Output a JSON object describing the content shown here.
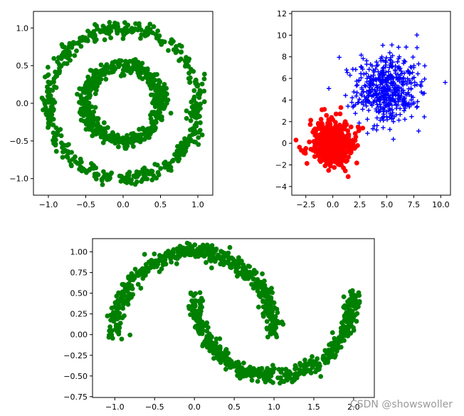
{
  "watermark": "CSDN @showswoller",
  "chart_data": [
    {
      "id": "circles",
      "type": "scatter",
      "title": "",
      "xlabel": "",
      "ylabel": "",
      "xlim": [
        -1.2,
        1.2
      ],
      "ylim": [
        -1.22,
        1.22
      ],
      "xticks": [
        -1.0,
        -0.5,
        0.0,
        0.5,
        1.0
      ],
      "xtick_labels": [
        "−1.0",
        "−0.5",
        "0.0",
        "0.5",
        "1.0"
      ],
      "yticks": [
        -1.0,
        -0.5,
        0.0,
        0.5,
        1.0
      ],
      "ytick_labels": [
        "−1.0",
        "−0.5",
        "0.0",
        "0.5",
        "1.0"
      ],
      "grid": false,
      "series": [
        {
          "color": "#008000",
          "marker": "circle",
          "description_points": {
            "generator": "circles",
            "outer_radius": 1.0,
            "inner_radius": 0.5,
            "noise": 0.05,
            "n": 1000,
            "seed": 11
          }
        }
      ]
    },
    {
      "id": "blobs",
      "type": "scatter",
      "title": "",
      "xlabel": "",
      "ylabel": "",
      "xlim": [
        -3.8,
        10.9
      ],
      "ylim": [
        -4.8,
        12.2
      ],
      "xticks": [
        -2.5,
        0.0,
        2.5,
        5.0,
        7.5,
        10.0
      ],
      "xtick_labels": [
        "−2.5",
        "0.0",
        "2.5",
        "5.0",
        "7.5",
        "10.0"
      ],
      "yticks": [
        -4,
        -2,
        0,
        2,
        4,
        6,
        8,
        10,
        12
      ],
      "ytick_labels": [
        "−4",
        "−2",
        "0",
        "2",
        "4",
        "6",
        "8",
        "10",
        "12"
      ],
      "grid": false,
      "series": [
        {
          "color": "#ff0000",
          "marker": "circle",
          "description_points": {
            "generator": "blob",
            "center": [
              0,
              0
            ],
            "std": 1.0,
            "n": 500,
            "seed": 21
          }
        },
        {
          "color": "#0000ff",
          "marker": "plus",
          "description_points": {
            "generator": "blob",
            "center": [
              5,
              5
            ],
            "std": 1.5,
            "n": 500,
            "seed": 33
          }
        }
      ]
    },
    {
      "id": "moons",
      "type": "scatter",
      "title": "",
      "xlabel": "",
      "ylabel": "",
      "xlim": [
        -1.28,
        2.26
      ],
      "ylim": [
        -0.76,
        1.16
      ],
      "xticks": [
        -1.0,
        -0.5,
        0.0,
        0.5,
        1.0,
        1.5,
        2.0
      ],
      "xtick_labels": [
        "−1.0",
        "−0.5",
        "0.0",
        "0.5",
        "1.0",
        "1.5",
        "2.0"
      ],
      "yticks": [
        -0.75,
        -0.5,
        -0.25,
        0.0,
        0.25,
        0.5,
        0.75,
        1.0
      ],
      "ytick_labels": [
        "−0.75",
        "−0.50",
        "−0.25",
        "0.00",
        "0.25",
        "0.50",
        "0.75",
        "1.00"
      ],
      "grid": false,
      "series": [
        {
          "color": "#008000",
          "marker": "circle",
          "description_points": {
            "generator": "moons",
            "noise": 0.05,
            "n": 1000,
            "seed": 7
          }
        }
      ]
    }
  ]
}
